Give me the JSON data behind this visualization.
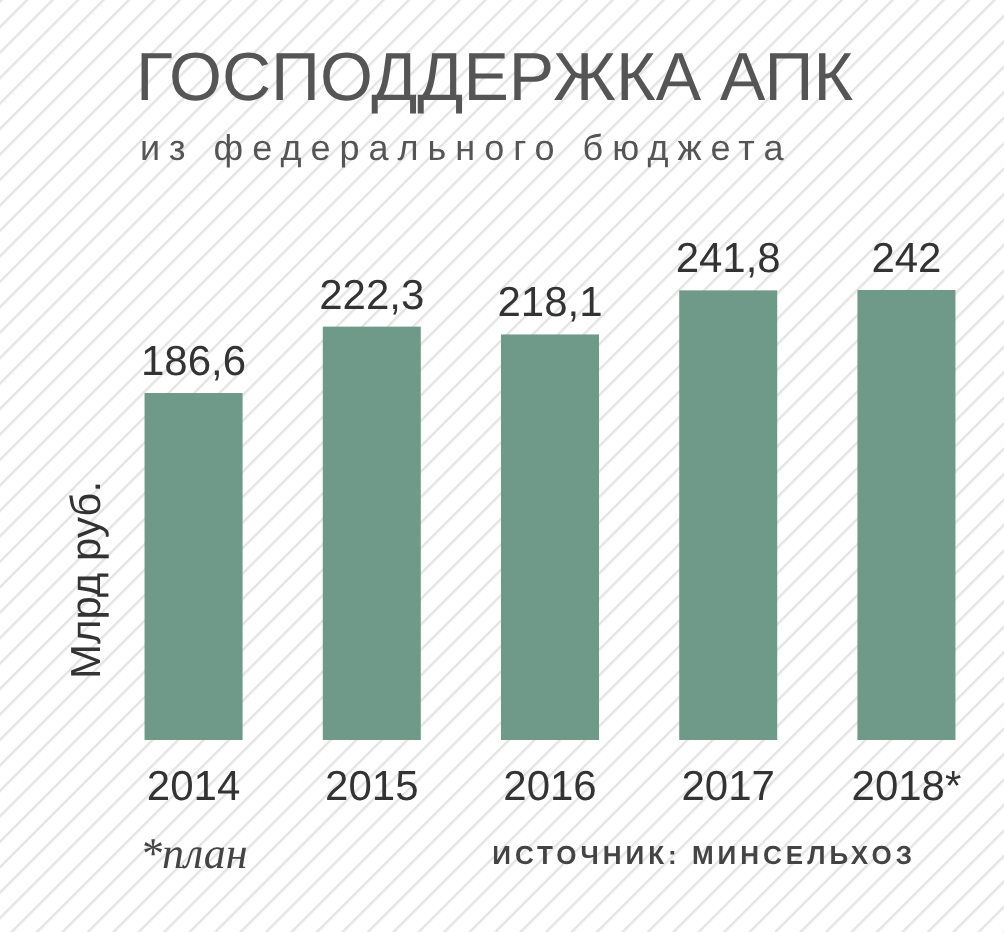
{
  "chart_data": {
    "type": "bar",
    "title": "ГОСПОДДЕРЖКА АПК",
    "subtitle": "из федерального бюджета",
    "ylabel": "Млрд руб.",
    "categories": [
      "2014",
      "2015",
      "2016",
      "2017",
      "2018*"
    ],
    "values": [
      186.6,
      222.3,
      218.1,
      241.8,
      242
    ],
    "value_labels": [
      "186,6",
      "222,3",
      "218,1",
      "241,8",
      "242"
    ],
    "color": "#6f9a8a",
    "annotations": [
      "*план",
      "ИСТОЧНИК: МИНСЕЛЬХОЗ"
    ]
  }
}
